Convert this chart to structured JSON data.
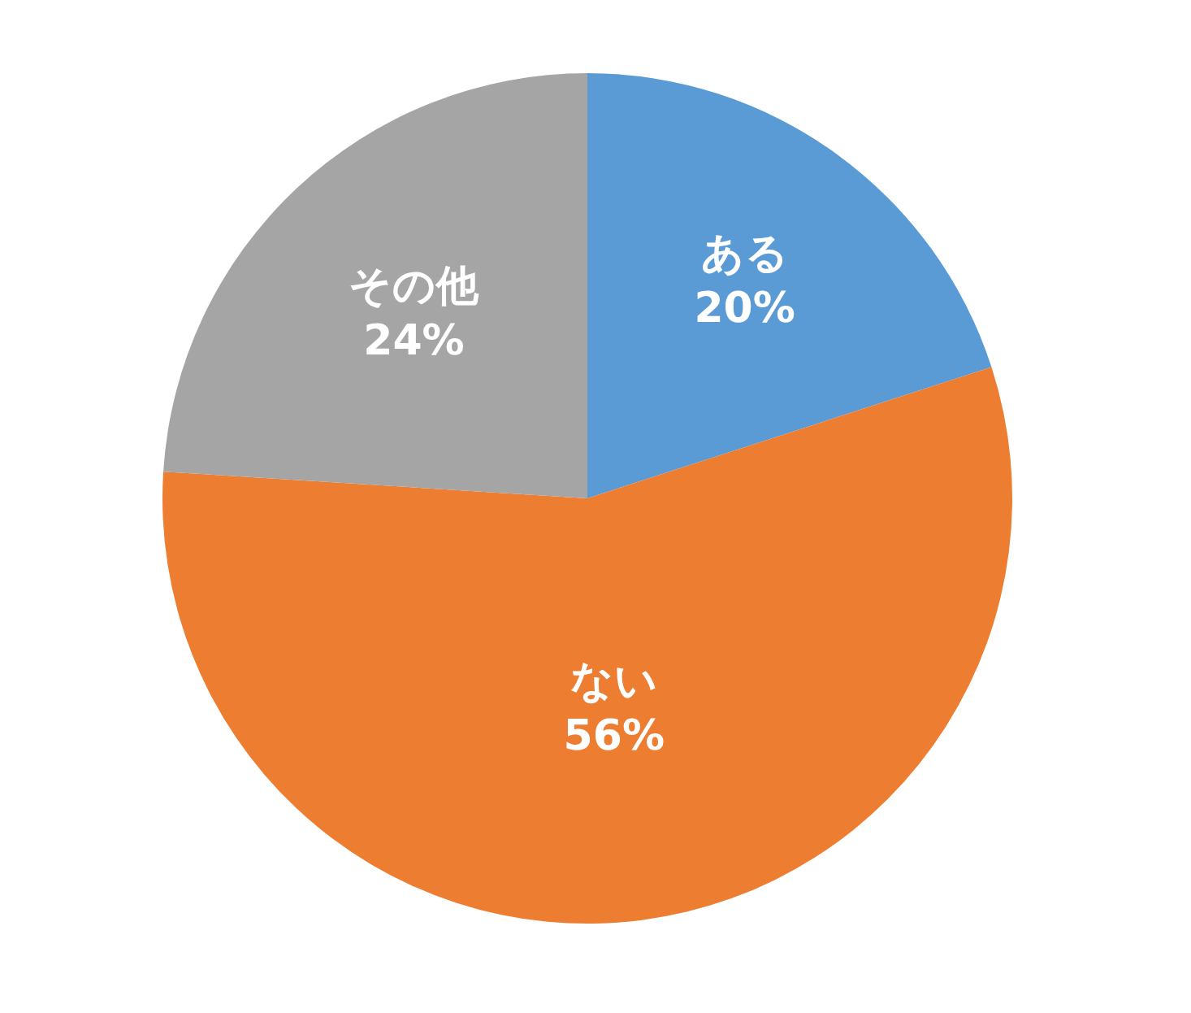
{
  "chart_data": {
    "type": "pie",
    "categories": [
      "ある",
      "ない",
      "その他"
    ],
    "values": [
      20,
      56,
      24
    ],
    "colors": [
      "#5b9bd5",
      "#ed7d31",
      "#a5a5a5"
    ],
    "value_labels": [
      "20%",
      "56%",
      "24%"
    ],
    "legend": false
  }
}
